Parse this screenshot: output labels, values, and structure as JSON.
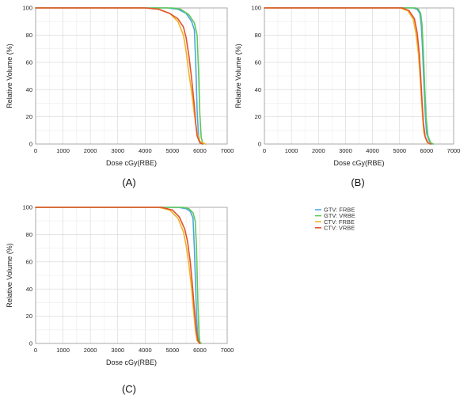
{
  "chart_data": [
    {
      "panel": "A",
      "panel_label": "(A)",
      "type": "line",
      "xlabel": "Dose cGy(RBE)",
      "ylabel": "Relative Volume (%)",
      "xlim": [
        0,
        7000
      ],
      "ylim": [
        0,
        100
      ],
      "xticks": [
        0,
        1000,
        2000,
        3000,
        4000,
        5000,
        6000,
        7000
      ],
      "yticks": [
        0,
        20,
        40,
        60,
        80,
        100
      ],
      "grid": true,
      "series": [
        {
          "name": "GTV: FRBE",
          "color": "#4da6e0",
          "x": [
            0,
            4800,
            5200,
            5500,
            5700,
            5800,
            5850,
            5900,
            5950,
            6000,
            6100
          ],
          "y": [
            100,
            100,
            99,
            96,
            90,
            84,
            60,
            25,
            6,
            1,
            0
          ]
        },
        {
          "name": "GTV: VRBE",
          "color": "#5fc85a",
          "x": [
            0,
            5000,
            5300,
            5600,
            5800,
            5900,
            5950,
            6000,
            6050,
            6100,
            6200
          ],
          "y": [
            100,
            100,
            99,
            95,
            89,
            80,
            55,
            22,
            5,
            1,
            0
          ]
        },
        {
          "name": "CTV: FRBE",
          "color": "#f0b429",
          "x": [
            0,
            4000,
            4500,
            4900,
            5200,
            5400,
            5500,
            5600,
            5700,
            5800,
            5900,
            6000,
            6200
          ],
          "y": [
            100,
            100,
            99,
            96,
            90,
            80,
            68,
            52,
            38,
            22,
            8,
            2,
            0
          ]
        },
        {
          "name": "CTV: VRBE",
          "color": "#e2522e",
          "x": [
            0,
            4000,
            4500,
            4900,
            5200,
            5400,
            5500,
            5600,
            5700,
            5800,
            5850,
            5900,
            6000,
            6100
          ],
          "y": [
            100,
            100,
            99,
            96,
            92,
            86,
            78,
            65,
            48,
            28,
            15,
            6,
            1,
            0
          ]
        }
      ]
    },
    {
      "panel": "B",
      "panel_label": "(B)",
      "type": "line",
      "xlabel": "Dose cGy(RBE)",
      "ylabel": "Relative Volume (%)",
      "xlim": [
        0,
        7000
      ],
      "ylim": [
        0,
        100
      ],
      "xticks": [
        0,
        1000,
        2000,
        3000,
        4000,
        5000,
        6000,
        7000
      ],
      "yticks": [
        0,
        20,
        40,
        60,
        80,
        100
      ],
      "grid": true,
      "series": [
        {
          "name": "GTV: FRBE",
          "color": "#4da6e0",
          "x": [
            0,
            5500,
            5650,
            5750,
            5800,
            5850,
            5900,
            5950,
            6000,
            6100,
            6200
          ],
          "y": [
            100,
            100,
            99,
            96,
            88,
            70,
            45,
            22,
            8,
            2,
            0
          ]
        },
        {
          "name": "GTV: VRBE",
          "color": "#5fc85a",
          "x": [
            0,
            5600,
            5700,
            5780,
            5830,
            5880,
            5930,
            5980,
            6050,
            6150,
            6250
          ],
          "y": [
            100,
            100,
            99,
            96,
            88,
            68,
            42,
            20,
            6,
            1,
            0
          ]
        },
        {
          "name": "CTV: FRBE",
          "color": "#f0b429",
          "x": [
            0,
            5000,
            5300,
            5500,
            5600,
            5700,
            5750,
            5800,
            5850,
            5900,
            6000,
            6100
          ],
          "y": [
            100,
            100,
            98,
            92,
            82,
            66,
            52,
            36,
            20,
            8,
            2,
            0
          ]
        },
        {
          "name": "CTV: VRBE",
          "color": "#e2522e",
          "x": [
            0,
            5100,
            5350,
            5550,
            5650,
            5730,
            5780,
            5830,
            5880,
            5950,
            6050,
            6150
          ],
          "y": [
            100,
            100,
            98,
            92,
            82,
            66,
            50,
            32,
            16,
            5,
            1,
            0
          ]
        }
      ]
    },
    {
      "panel": "C",
      "panel_label": "(C)",
      "type": "line",
      "xlabel": "Dose cGy(RBE)",
      "ylabel": "Relative Volume (%)",
      "xlim": [
        0,
        7000
      ],
      "ylim": [
        0,
        100
      ],
      "xticks": [
        0,
        1000,
        2000,
        3000,
        4000,
        5000,
        6000,
        7000
      ],
      "yticks": [
        0,
        20,
        40,
        60,
        80,
        100
      ],
      "grid": true,
      "series": [
        {
          "name": "GTV: FRBE",
          "color": "#4da6e0",
          "x": [
            0,
            5200,
            5500,
            5650,
            5750,
            5800,
            5850,
            5880,
            5920,
            5960,
            6000
          ],
          "y": [
            100,
            100,
            99,
            97,
            92,
            70,
            40,
            20,
            6,
            1,
            0
          ]
        },
        {
          "name": "GTV: VRBE",
          "color": "#5fc85a",
          "x": [
            0,
            5400,
            5600,
            5750,
            5830,
            5880,
            5910,
            5940,
            5970,
            6000,
            6050
          ],
          "y": [
            100,
            100,
            99,
            96,
            90,
            70,
            45,
            22,
            6,
            1,
            0
          ]
        },
        {
          "name": "CTV: FRBE",
          "color": "#f0b429",
          "x": [
            0,
            4500,
            4900,
            5200,
            5400,
            5500,
            5600,
            5700,
            5750,
            5800,
            5850,
            5900,
            6000
          ],
          "y": [
            100,
            100,
            98,
            92,
            82,
            72,
            58,
            40,
            28,
            18,
            8,
            2,
            0
          ]
        },
        {
          "name": "CTV: VRBE",
          "color": "#e2522e",
          "x": [
            0,
            4600,
            5000,
            5250,
            5450,
            5550,
            5650,
            5720,
            5780,
            5830,
            5880,
            5930,
            6000
          ],
          "y": [
            100,
            100,
            98,
            93,
            84,
            75,
            60,
            45,
            30,
            18,
            8,
            2,
            0
          ]
        }
      ]
    }
  ],
  "legend": [
    {
      "name": "GTV: FRBE",
      "color": "#4da6e0"
    },
    {
      "name": "GTV: VRBE",
      "color": "#5fc85a"
    },
    {
      "name": "CTV: FRBE",
      "color": "#f0b429"
    },
    {
      "name": "CTV: VRBE",
      "color": "#e2522e"
    }
  ]
}
